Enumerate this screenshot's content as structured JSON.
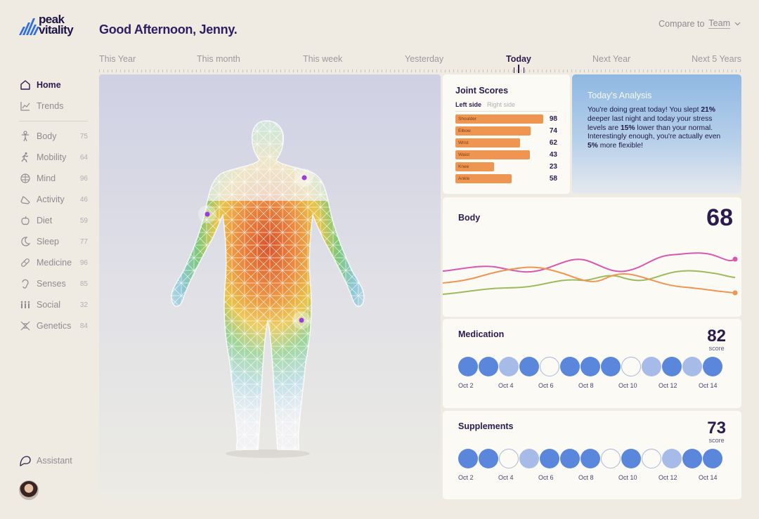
{
  "brand": {
    "name_line1": "peak",
    "name_line2": "vitality"
  },
  "header": {
    "greeting": "Good Afternoon, Jenny.",
    "compare_label": "Compare to",
    "compare_value": "Team"
  },
  "timeline": {
    "items": [
      "This Year",
      "This month",
      "This week",
      "Yesterday",
      "Today",
      "Next Year",
      "Next 5 Years"
    ],
    "active": "Today"
  },
  "sidebar": {
    "primary": [
      {
        "label": "Home",
        "icon": "home-icon",
        "active": true
      },
      {
        "label": "Trends",
        "icon": "trends-icon",
        "active": false
      }
    ],
    "items": [
      {
        "label": "Body",
        "count": "75",
        "icon": "body-icon"
      },
      {
        "label": "Mobility",
        "count": "64",
        "icon": "mobility-icon"
      },
      {
        "label": "Mind",
        "count": "96",
        "icon": "mind-icon"
      },
      {
        "label": "Activity",
        "count": "46",
        "icon": "activity-icon"
      },
      {
        "label": "Diet",
        "count": "59",
        "icon": "diet-icon"
      },
      {
        "label": "Sleep",
        "count": "77",
        "icon": "sleep-icon"
      },
      {
        "label": "Medicine",
        "count": "96",
        "icon": "medicine-icon"
      },
      {
        "label": "Senses",
        "count": "85",
        "icon": "senses-icon"
      },
      {
        "label": "Social",
        "count": "32",
        "icon": "social-icon"
      },
      {
        "label": "Genetics",
        "count": "84",
        "icon": "genetics-icon"
      }
    ],
    "assistant": "Assistant"
  },
  "joint_scores": {
    "title": "Joint Scores",
    "tabs": [
      "Left side",
      "Right side"
    ],
    "rows": [
      {
        "label": "Shoulder",
        "value": "98"
      },
      {
        "label": "Elbow",
        "value": "74"
      },
      {
        "label": "Wrist",
        "value": "62"
      },
      {
        "label": "Waist",
        "value": "43"
      },
      {
        "label": "Knee",
        "value": "23"
      },
      {
        "label": "Ankle",
        "value": "58"
      }
    ]
  },
  "analysis": {
    "title": "Today's Analysis",
    "p1": "You're doing great today! You slept ",
    "b1": "21%",
    "p2": " deeper last night and today your stress levels are ",
    "b2": "15%",
    "p3": " lower than your normal. Interestingly enough, you're actually even ",
    "b3": "5%",
    "p4": " more flexible!"
  },
  "body_card": {
    "title": "Body",
    "score": "68"
  },
  "medication": {
    "title": "Medication",
    "score": "82",
    "score_label": "score",
    "dots": [
      "full",
      "full",
      "half",
      "full",
      "empty",
      "full",
      "full",
      "full",
      "empty",
      "half",
      "full",
      "half",
      "full"
    ],
    "dates": [
      "Oct 2",
      "Oct 4",
      "Oct 6",
      "Oct 8",
      "Oct 10",
      "Oct 12",
      "Oct 14"
    ]
  },
  "supplements": {
    "title": "Supplements",
    "score": "73",
    "score_label": "score",
    "dots": [
      "full",
      "full",
      "empty",
      "half",
      "full",
      "full",
      "full",
      "empty",
      "full",
      "empty",
      "half",
      "full",
      "full"
    ],
    "dates": [
      "Oct 2",
      "Oct 4",
      "Oct 6",
      "Oct 8",
      "Oct 10",
      "Oct 12",
      "Oct 14"
    ]
  },
  "colors": {
    "accent": "#2b1b4f",
    "joint_bar": "#ef9552",
    "dot_full": "#5a86dc",
    "dot_half": "#a6bbe8",
    "line_pink": "#d957b0",
    "line_orange": "#ef9552",
    "line_green": "#9dbb5b"
  }
}
